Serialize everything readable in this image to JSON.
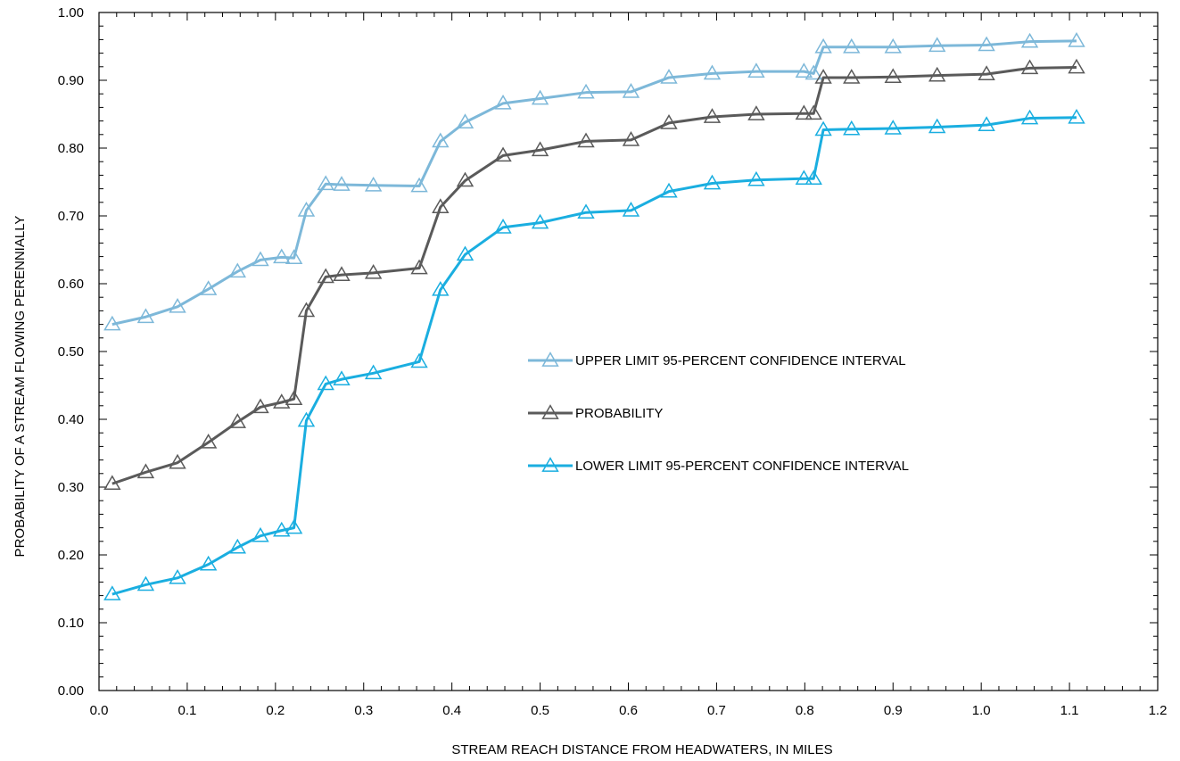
{
  "chart_data": {
    "type": "line",
    "xlabel": "STREAM REACH DISTANCE FROM HEADWATERS, IN MILES",
    "ylabel": "PROBABILITY OF A STREAM FLOWING PERENNIALLY",
    "xlim": [
      0.0,
      1.2
    ],
    "ylim": [
      0.0,
      1.0
    ],
    "x_ticks": [
      "0.0",
      "0.1",
      "0.2",
      "0.3",
      "0.4",
      "0.5",
      "0.6",
      "0.7",
      "0.8",
      "0.9",
      "1.0",
      "1.1",
      "1.2"
    ],
    "y_ticks": [
      "0.00",
      "0.10",
      "0.20",
      "0.30",
      "0.40",
      "0.50",
      "0.60",
      "0.70",
      "0.80",
      "0.90",
      "1.00"
    ],
    "grid": false,
    "legend_position": "center-right",
    "marker": "triangle-open",
    "x": [
      0.015,
      0.053,
      0.089,
      0.124,
      0.157,
      0.183,
      0.207,
      0.221,
      0.235,
      0.257,
      0.275,
      0.311,
      0.363,
      0.387,
      0.415,
      0.458,
      0.5,
      0.552,
      0.603,
      0.646,
      0.695,
      0.745,
      0.799,
      0.81,
      0.821,
      0.853,
      0.9,
      0.95,
      1.006,
      1.055,
      1.108
    ],
    "series": [
      {
        "name": "UPPER LIMIT 95-PERCENT CONFIDENCE INTERVAL",
        "color": "#7db8d9",
        "values": [
          0.54,
          0.551,
          0.566,
          0.592,
          0.618,
          0.635,
          0.639,
          0.638,
          0.708,
          0.747,
          0.746,
          0.745,
          0.744,
          0.81,
          0.838,
          0.866,
          0.873,
          0.882,
          0.883,
          0.904,
          0.91,
          0.913,
          0.913,
          0.91,
          0.949,
          0.949,
          0.949,
          0.951,
          0.952,
          0.957,
          0.958
        ]
      },
      {
        "name": "PROBABILITY",
        "color": "#5a5a5a",
        "values": [
          0.305,
          0.322,
          0.336,
          0.366,
          0.396,
          0.418,
          0.425,
          0.43,
          0.56,
          0.61,
          0.613,
          0.616,
          0.623,
          0.713,
          0.752,
          0.789,
          0.797,
          0.81,
          0.812,
          0.837,
          0.846,
          0.85,
          0.851,
          0.851,
          0.904,
          0.904,
          0.905,
          0.907,
          0.909,
          0.918,
          0.919
        ]
      },
      {
        "name": "LOWER LIMIT 95-PERCENT CONFIDENCE INTERVAL",
        "color": "#1aaee0",
        "values": [
          0.142,
          0.156,
          0.166,
          0.186,
          0.211,
          0.228,
          0.236,
          0.24,
          0.398,
          0.452,
          0.459,
          0.468,
          0.485,
          0.591,
          0.643,
          0.683,
          0.69,
          0.705,
          0.708,
          0.736,
          0.748,
          0.753,
          0.755,
          0.755,
          0.827,
          0.828,
          0.829,
          0.831,
          0.834,
          0.844,
          0.845
        ]
      }
    ]
  }
}
